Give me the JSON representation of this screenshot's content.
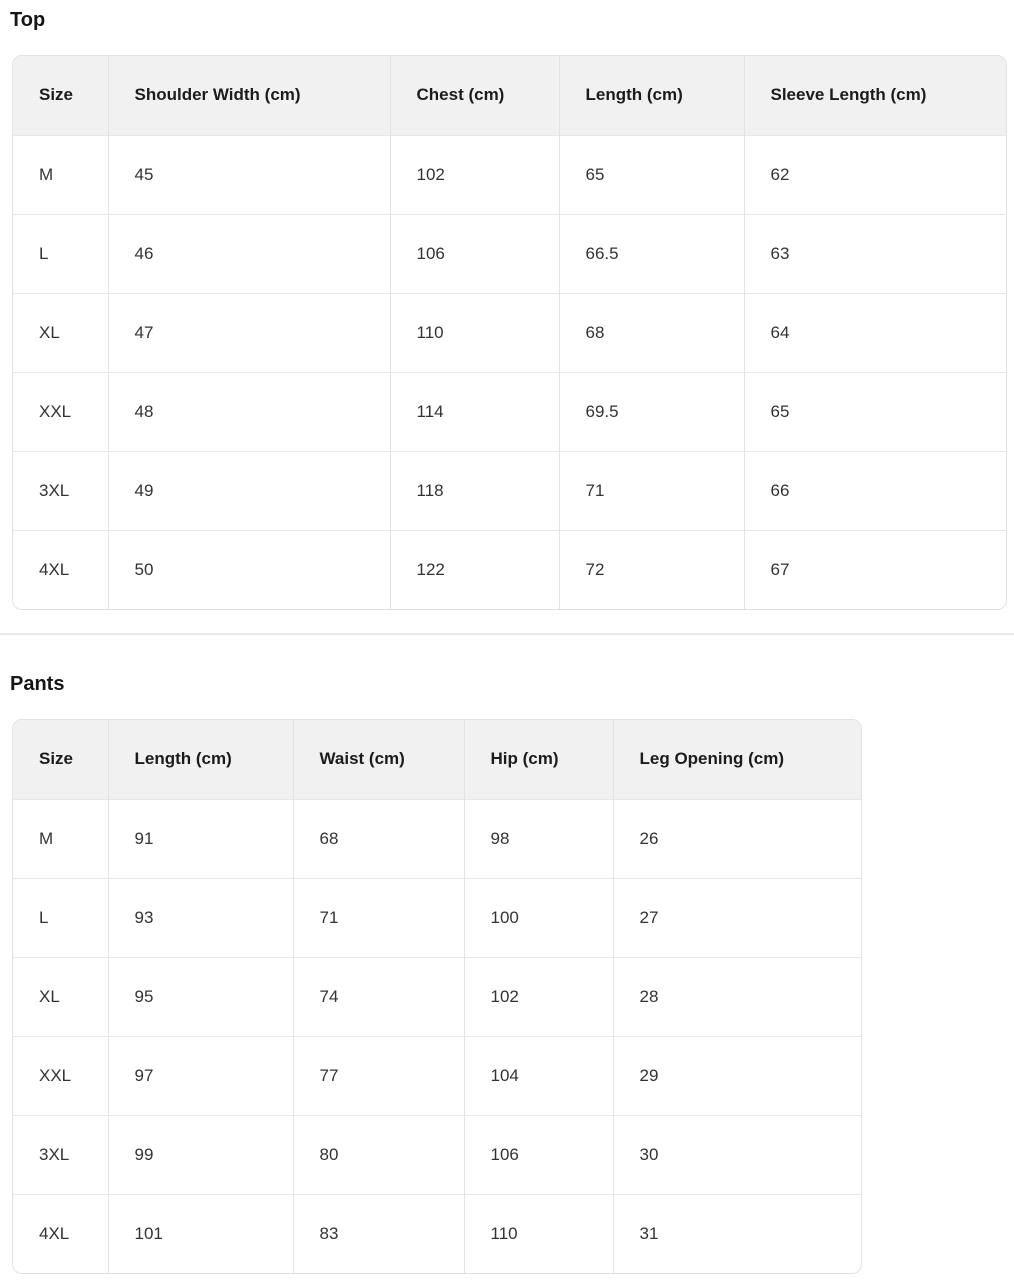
{
  "colors": {
    "header_background": "#f1f1f1",
    "border": "#e3e3e3",
    "title_text": "#161616",
    "body_text": "#333333"
  },
  "sections": [
    {
      "id": "top",
      "title": "Top",
      "columns": [
        "Size",
        "Shoulder Width (cm)",
        "Chest (cm)",
        "Length (cm)",
        "Sleeve Length (cm)"
      ],
      "rows": [
        [
          "M",
          "45",
          "102",
          "65",
          "62"
        ],
        [
          "L",
          "46",
          "106",
          "66.5",
          "63"
        ],
        [
          "XL",
          "47",
          "110",
          "68",
          "64"
        ],
        [
          "XXL",
          "48",
          "114",
          "69.5",
          "65"
        ],
        [
          "3XL",
          "49",
          "118",
          "71",
          "66"
        ],
        [
          "4XL",
          "50",
          "122",
          "72",
          "67"
        ]
      ]
    },
    {
      "id": "pants",
      "title": "Pants",
      "columns": [
        "Size",
        "Length (cm)",
        "Waist (cm)",
        "Hip (cm)",
        "Leg Opening (cm)"
      ],
      "rows": [
        [
          "M",
          "91",
          "68",
          "98",
          "26"
        ],
        [
          "L",
          "93",
          "71",
          "100",
          "27"
        ],
        [
          "XL",
          "95",
          "74",
          "102",
          "28"
        ],
        [
          "XXL",
          "97",
          "77",
          "104",
          "29"
        ],
        [
          "3XL",
          "99",
          "80",
          "106",
          "30"
        ],
        [
          "4XL",
          "101",
          "83",
          "110",
          "31"
        ]
      ]
    }
  ]
}
